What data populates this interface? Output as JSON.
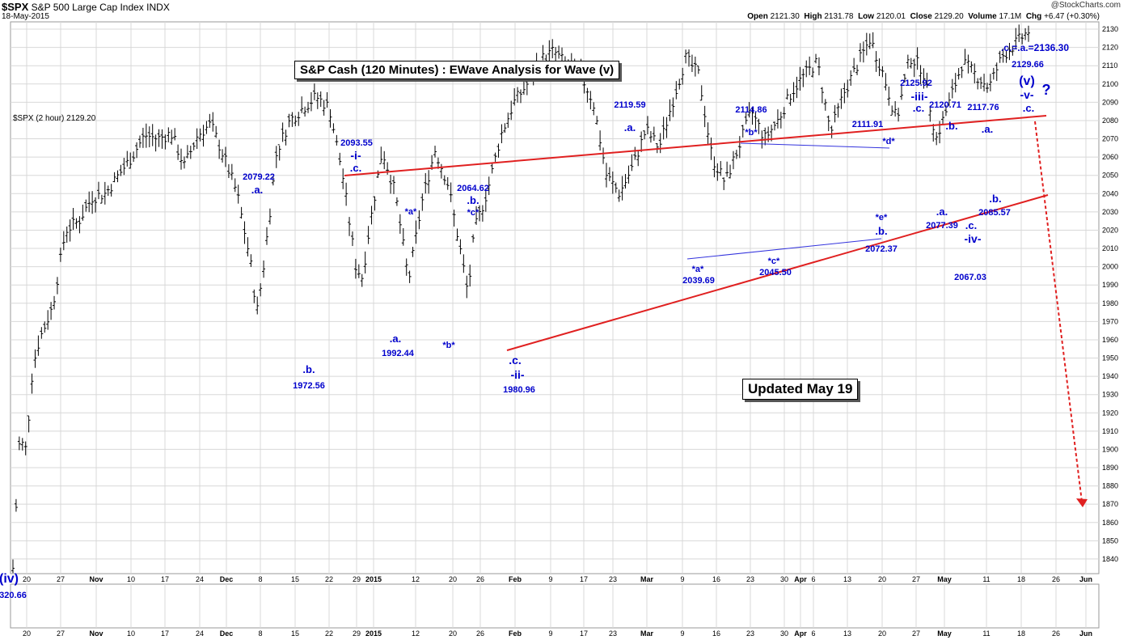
{
  "header": {
    "symbol": "$SPX",
    "name": "S&P 500 Large Cap Index",
    "exchange": "INDX",
    "date": "18-May-2015",
    "brand": "@StockCharts.com",
    "quote": {
      "open_label": "Open",
      "open": "2121.30",
      "high_label": "High",
      "high": "2131.78",
      "low_label": "Low",
      "low": "2120.01",
      "close_label": "Close",
      "close": "2129.20",
      "volume_label": "Volume",
      "volume": "17.1M",
      "chg_label": "Chg",
      "chg": "+6.47 (+0.30%)"
    }
  },
  "legend": "$SPX (2 hour) 2129.20",
  "title_box": "S&P Cash (120 Minutes) : EWave Analysis for Wave (v)",
  "updated_box": "Updated May 19",
  "colors": {
    "wave_labels": "#0000cc",
    "trendlines": "#e02020",
    "triangle": "#3333dd",
    "bars": "#000000",
    "grid": "#d8d8d8"
  },
  "chart_data": {
    "type": "ohlc",
    "ylim": [
      1832,
      2134
    ],
    "yticks": [
      1840,
      1850,
      1860,
      1870,
      1880,
      1890,
      1900,
      1910,
      1920,
      1930,
      1940,
      1950,
      1960,
      1970,
      1980,
      1990,
      2000,
      2010,
      2020,
      2030,
      2040,
      2050,
      2060,
      2070,
      2080,
      2090,
      2100,
      2110,
      2120,
      2130
    ],
    "xtick_labels": [
      "20",
      "27",
      "Nov",
      "10",
      "17",
      "24",
      "Dec",
      "8",
      "15",
      "22",
      "29",
      "2015",
      "12",
      "20",
      "26",
      "Feb",
      "9",
      "17",
      "23",
      "Mar",
      "9",
      "16",
      "23",
      "30",
      "Apr",
      "6",
      "13",
      "20",
      "27",
      "May",
      "11",
      "18",
      "26",
      "Jun"
    ],
    "price_path": [
      [
        0,
        1835
      ],
      [
        0.5,
        1905
      ],
      [
        1.0,
        1900
      ],
      [
        1.5,
        1945
      ],
      [
        2,
        1960
      ],
      [
        3,
        1978
      ],
      [
        4,
        2020
      ],
      [
        5,
        2025
      ],
      [
        6,
        2038
      ],
      [
        7,
        2040
      ],
      [
        8,
        2050
      ],
      [
        9,
        2060
      ],
      [
        10,
        2072
      ],
      [
        11,
        2070
      ],
      [
        12,
        2073
      ],
      [
        13,
        2055
      ],
      [
        14,
        2072
      ],
      [
        15,
        2078
      ],
      [
        16,
        2060
      ],
      [
        17,
        2040
      ],
      [
        18,
        2003
      ],
      [
        18.5,
        1975
      ],
      [
        19,
        2000
      ],
      [
        20,
        2063
      ],
      [
        21,
        2080
      ],
      [
        22,
        2087
      ],
      [
        23,
        2093
      ],
      [
        24,
        2087
      ],
      [
        25,
        2050
      ],
      [
        26,
        2000
      ],
      [
        26.5,
        1994
      ],
      [
        27,
        2020
      ],
      [
        28,
        2064
      ],
      [
        29,
        2040
      ],
      [
        30,
        1992
      ],
      [
        31,
        2035
      ],
      [
        32,
        2064
      ],
      [
        33,
        2045
      ],
      [
        34,
        2006
      ],
      [
        34.5,
        1985
      ],
      [
        35,
        2020
      ],
      [
        36,
        2042
      ],
      [
        37,
        2072
      ],
      [
        38,
        2090
      ],
      [
        39,
        2100
      ],
      [
        40,
        2113
      ],
      [
        41,
        2118
      ],
      [
        42,
        2110
      ],
      [
        43,
        2106
      ],
      [
        44,
        2090
      ],
      [
        45,
        2050
      ],
      [
        46,
        2040
      ],
      [
        47,
        2055
      ],
      [
        48,
        2075
      ],
      [
        49,
        2065
      ],
      [
        50,
        2090
      ],
      [
        51,
        2114
      ],
      [
        52,
        2105
      ],
      [
        53,
        2060
      ],
      [
        54,
        2046
      ],
      [
        55,
        2065
      ],
      [
        56,
        2085
      ],
      [
        57,
        2070
      ],
      [
        58,
        2080
      ],
      [
        59,
        2095
      ],
      [
        60,
        2105
      ],
      [
        61,
        2112
      ],
      [
        62,
        2073
      ],
      [
        63,
        2095
      ],
      [
        64,
        2110
      ],
      [
        65,
        2125
      ],
      [
        66,
        2105
      ],
      [
        67,
        2080
      ],
      [
        68,
        2115
      ],
      [
        69,
        2108
      ],
      [
        70,
        2070
      ],
      [
        71,
        2090
      ],
      [
        72,
        2112
      ],
      [
        73,
        2105
      ],
      [
        74,
        2098
      ],
      [
        75,
        2115
      ],
      [
        76,
        2122
      ],
      [
        77,
        2129
      ]
    ]
  },
  "wave_labels": [
    {
      "text": "2079.22",
      "x": 320,
      "y": 222,
      "size": 11
    },
    {
      "text": ".a.",
      "x": 318,
      "y": 239,
      "size": 13
    },
    {
      "text": "2093.55",
      "x": 441,
      "y": 180,
      "size": 11
    },
    {
      "text": "-i-",
      "x": 440,
      "y": 197,
      "size": 14
    },
    {
      "text": ".c.",
      "x": 440,
      "y": 212,
      "size": 13
    },
    {
      "text": ".b.",
      "x": 382,
      "y": 461,
      "size": 13
    },
    {
      "text": "1972.56",
      "x": 382,
      "y": 480,
      "size": 11
    },
    {
      "text": ".a.",
      "x": 489,
      "y": 423,
      "size": 13
    },
    {
      "text": "1992.44",
      "x": 492,
      "y": 440,
      "size": 11
    },
    {
      "text": "*a*",
      "x": 508,
      "y": 265,
      "size": 11
    },
    {
      "text": "2064.62",
      "x": 585,
      "y": 236,
      "size": 11
    },
    {
      "text": ".b.",
      "x": 585,
      "y": 252,
      "size": 13
    },
    {
      "text": "*c*",
      "x": 585,
      "y": 266,
      "size": 11
    },
    {
      "text": "*b*",
      "x": 555,
      "y": 430,
      "size": 11
    },
    {
      "text": ".c.",
      "x": 637,
      "y": 450,
      "size": 14
    },
    {
      "text": "-ii-",
      "x": 640,
      "y": 468,
      "size": 14
    },
    {
      "text": "1980.96",
      "x": 642,
      "y": 485,
      "size": 11
    },
    {
      "text": "2119.59",
      "x": 779,
      "y": 133,
      "size": 11
    },
    {
      "text": ".a.",
      "x": 779,
      "y": 162,
      "size": 13
    },
    {
      "text": "2114.86",
      "x": 929,
      "y": 139,
      "size": 11
    },
    {
      "text": "*b*",
      "x": 929,
      "y": 167,
      "size": 11
    },
    {
      "text": "2111.91",
      "x": 1073,
      "y": 157,
      "size": 11
    },
    {
      "text": "*d*",
      "x": 1099,
      "y": 178,
      "size": 11
    },
    {
      "text": "*a*",
      "x": 863,
      "y": 336,
      "size": 11
    },
    {
      "text": "2039.69",
      "x": 864,
      "y": 350,
      "size": 11
    },
    {
      "text": "*c*",
      "x": 957,
      "y": 326,
      "size": 11
    },
    {
      "text": "2045.50",
      "x": 959,
      "y": 340,
      "size": 11
    },
    {
      "text": "*e*",
      "x": 1090,
      "y": 272,
      "size": 11
    },
    {
      "text": ".b.",
      "x": 1090,
      "y": 290,
      "size": 13
    },
    {
      "text": "2072.37",
      "x": 1090,
      "y": 311,
      "size": 11
    },
    {
      "text": "2125.92",
      "x": 1133,
      "y": 106,
      "size": 11
    },
    {
      "text": "-iii-",
      "x": 1137,
      "y": 124,
      "size": 14
    },
    {
      "text": ".c.",
      "x": 1136,
      "y": 138,
      "size": 13
    },
    {
      "text": "2120.71",
      "x": 1169,
      "y": 133,
      "size": 11
    },
    {
      "text": ".b.",
      "x": 1177,
      "y": 160,
      "size": 13
    },
    {
      "text": "2117.76",
      "x": 1216,
      "y": 136,
      "size": 11
    },
    {
      "text": ".a.",
      "x": 1221,
      "y": 164,
      "size": 13
    },
    {
      "text": ".a.",
      "x": 1165,
      "y": 266,
      "size": 13
    },
    {
      "text": "2077.39",
      "x": 1165,
      "y": 282,
      "size": 11
    },
    {
      "text": ".b.",
      "x": 1231,
      "y": 250,
      "size": 13
    },
    {
      "text": "2085.57",
      "x": 1230,
      "y": 266,
      "size": 11
    },
    {
      "text": ".c.",
      "x": 1201,
      "y": 283,
      "size": 13
    },
    {
      "text": "-iv-",
      "x": 1203,
      "y": 300,
      "size": 14
    },
    {
      "text": "2067.03",
      "x": 1200,
      "y": 346,
      "size": 11
    },
    {
      "text": ".c.=.a.=2136.30",
      "x": 1280,
      "y": 63,
      "size": 12
    },
    {
      "text": "2129.66",
      "x": 1271,
      "y": 83,
      "size": 11
    },
    {
      "text": "(v)",
      "x": 1270,
      "y": 105,
      "size": 16
    },
    {
      "text": "?",
      "x": 1294,
      "y": 117,
      "size": 18
    },
    {
      "text": "-v-",
      "x": 1270,
      "y": 122,
      "size": 14
    },
    {
      "text": ".c.",
      "x": 1272,
      "y": 138,
      "size": 13
    },
    {
      "text": "(iv)",
      "x": 11,
      "y": 720,
      "size": 16
    },
    {
      "text": "320.66",
      "x": 16,
      "y": 739,
      "size": 11
    }
  ]
}
